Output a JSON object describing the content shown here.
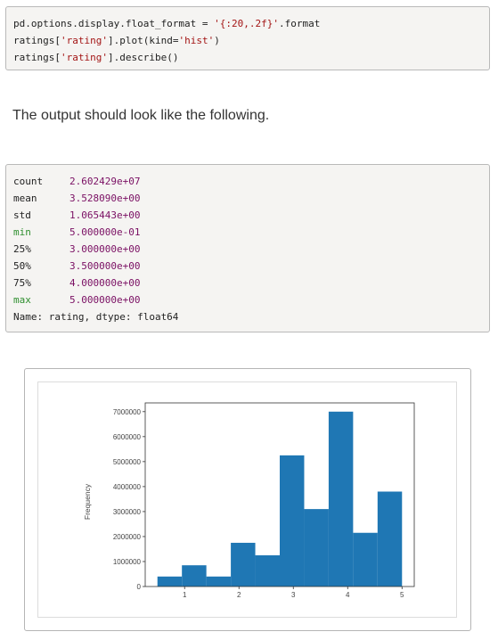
{
  "code_input": {
    "line1_pre": "pd.options.display.float_format = ",
    "line1_str": "'{:20,.2f}'",
    "line1_post": ".format",
    "line2_pre": "ratings[",
    "line2_str1": "'rating'",
    "line2_mid": "].plot(kind=",
    "line2_str2": "'hist'",
    "line2_post": ")",
    "line3_pre": "ratings[",
    "line3_str": "'rating'",
    "line3_post": "].describe()"
  },
  "prose_text": "The output should look like the following.",
  "describe_output": {
    "rows": [
      {
        "key": "count",
        "value": "2.602429e+07"
      },
      {
        "key": "mean",
        "value": "3.528090e+00"
      },
      {
        "key": "std",
        "value": "1.065443e+00"
      },
      {
        "key": "min",
        "value": "5.000000e-01"
      },
      {
        "key": "25%",
        "value": "3.000000e+00"
      },
      {
        "key": "50%",
        "value": "3.500000e+00"
      },
      {
        "key": "75%",
        "value": "4.000000e+00"
      },
      {
        "key": "max",
        "value": "5.000000e+00"
      }
    ],
    "footer": "Name: rating, dtype: float64"
  },
  "chart_data": {
    "type": "bar",
    "ylabel": "Frequency",
    "xlabel": "",
    "title": "",
    "bar_color": "#1f77b4",
    "bins": [
      {
        "left": 0.5,
        "right": 0.95,
        "count": 400000
      },
      {
        "left": 0.95,
        "right": 1.4,
        "count": 850000
      },
      {
        "left": 1.4,
        "right": 1.85,
        "count": 400000
      },
      {
        "left": 1.85,
        "right": 2.3,
        "count": 1750000
      },
      {
        "left": 2.3,
        "right": 2.75,
        "count": 1250000
      },
      {
        "left": 2.75,
        "right": 3.2,
        "count": 5250000
      },
      {
        "left": 3.2,
        "right": 3.65,
        "count": 3100000
      },
      {
        "left": 3.65,
        "right": 4.1,
        "count": 7000000
      },
      {
        "left": 4.1,
        "right": 4.55,
        "count": 2150000
      },
      {
        "left": 4.55,
        "right": 5.0,
        "count": 3800000
      }
    ],
    "xlim": [
      0.275,
      5.225
    ],
    "ylim": [
      0,
      7350000
    ],
    "xticks": [
      1,
      2,
      3,
      4,
      5
    ],
    "yticks": [
      0,
      1000000,
      2000000,
      3000000,
      4000000,
      5000000,
      6000000,
      7000000
    ],
    "grid": false,
    "legend": "none"
  }
}
